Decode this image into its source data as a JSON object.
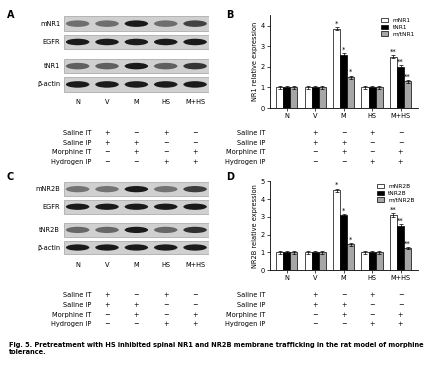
{
  "caption": "Fig. 5. Pretreatment with HS inhibited spinal NR1 and NR2B membrane trafficking in the rat model of morphine tolerance.",
  "lanes": [
    "N",
    "V",
    "M",
    "HS",
    "M+HS"
  ],
  "treatments": [
    {
      "name": "Saline IT",
      "signs": [
        null,
        "+",
        "−",
        "+",
        "−"
      ]
    },
    {
      "name": "Saline IP",
      "signs": [
        null,
        "+",
        "+",
        "−",
        "−"
      ]
    },
    {
      "name": "Morphine IT",
      "signs": [
        null,
        "−",
        "+",
        "−",
        "+"
      ]
    },
    {
      "name": "Hydrogen IP",
      "signs": [
        null,
        "−",
        "−",
        "+",
        "+"
      ]
    }
  ],
  "blots": [
    {
      "letter": "A",
      "bands": [
        "mNR1",
        "EGFR",
        "tNR1",
        "β-actin"
      ]
    },
    {
      "letter": "C",
      "bands": [
        "mNR2B",
        "EGFR",
        "tNR2B",
        "β-actin"
      ]
    }
  ],
  "chart_data": [
    {
      "type": "bar",
      "title": "B",
      "y_label": "NR1 relative expression",
      "categories": [
        "N",
        "V",
        "M",
        "HS",
        "M+HS"
      ],
      "series": [
        {
          "name": "mNR1",
          "color": "#ffffff",
          "values": [
            1.0,
            1.0,
            3.85,
            1.0,
            2.5
          ],
          "errors": [
            0.08,
            0.08,
            0.08,
            0.07,
            0.08
          ],
          "annotations": [
            null,
            null,
            "*",
            null,
            "**"
          ]
        },
        {
          "name": "tNR1",
          "color": "#000000",
          "values": [
            1.0,
            1.0,
            2.6,
            1.0,
            2.0
          ],
          "errors": [
            0.07,
            0.08,
            0.08,
            0.07,
            0.07
          ],
          "annotations": [
            null,
            null,
            "*",
            null,
            "**"
          ]
        },
        {
          "name": "m/tNR1",
          "color": "#a6a6a6",
          "values": [
            1.0,
            1.0,
            1.5,
            1.0,
            1.3
          ],
          "errors": [
            0.07,
            0.07,
            0.08,
            0.07,
            0.07
          ],
          "annotations": [
            null,
            null,
            "*",
            null,
            "**"
          ]
        }
      ],
      "ylim": [
        0,
        4.5
      ],
      "yticks": [
        0,
        1,
        2,
        3,
        4
      ],
      "legend": "upper right"
    },
    {
      "type": "bar",
      "title": "D",
      "y_label": "NR2B relative expression",
      "categories": [
        "N",
        "V",
        "M",
        "HS",
        "M+HS"
      ],
      "series": [
        {
          "name": "mNR2B",
          "color": "#ffffff",
          "values": [
            1.0,
            1.0,
            4.5,
            1.0,
            3.1
          ],
          "errors": [
            0.08,
            0.08,
            0.1,
            0.07,
            0.1
          ],
          "annotations": [
            null,
            null,
            "*",
            null,
            "**"
          ]
        },
        {
          "name": "tNR2B",
          "color": "#000000",
          "values": [
            1.0,
            1.0,
            3.1,
            1.0,
            2.5
          ],
          "errors": [
            0.07,
            0.07,
            0.08,
            0.07,
            0.08
          ],
          "annotations": [
            null,
            null,
            "*",
            null,
            "**"
          ]
        },
        {
          "name": "m/tNR2B",
          "color": "#a6a6a6",
          "values": [
            1.0,
            1.0,
            1.45,
            1.0,
            1.25
          ],
          "errors": [
            0.07,
            0.07,
            0.08,
            0.07,
            0.07
          ],
          "annotations": [
            null,
            null,
            "*",
            null,
            "**"
          ]
        }
      ],
      "ylim": [
        0,
        5
      ],
      "yticks": [
        0,
        1,
        2,
        3,
        4,
        5
      ],
      "legend": "upper right"
    }
  ]
}
